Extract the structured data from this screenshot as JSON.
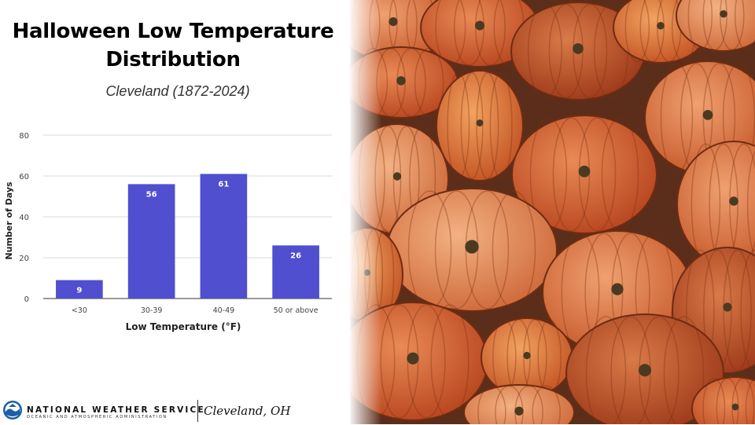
{
  "page": {
    "title_line1": "Halloween Low Temperature",
    "title_line2": "Distribution",
    "subtitle": "Cleveland (1872-2024)"
  },
  "footer": {
    "agency": "NATIONAL WEATHER SERVICE",
    "agency_sub": "OCEANIC AND ATMOSPHERIC ADMINISTRATION",
    "office": "Cleveland, OH"
  },
  "chart_data": {
    "type": "bar",
    "categories": [
      "<30",
      "30-39",
      "40-49",
      "50 or above"
    ],
    "values": [
      9,
      56,
      61,
      26
    ],
    "data_labels": [
      "9",
      "56",
      "61",
      "26"
    ],
    "xlabel": "Low Temperature (°F)",
    "ylabel": "Number of Days",
    "ylim": [
      0,
      80
    ],
    "yticks": [
      0,
      20,
      40,
      60,
      80
    ],
    "grid": true,
    "legend": "none",
    "bar_color": "#4f4fcf"
  },
  "colors": {
    "bar": "#4f4fcf",
    "grid": "#d9d9d9",
    "axis_text": "#444444"
  },
  "photo": {
    "subject": "pumpkins"
  }
}
